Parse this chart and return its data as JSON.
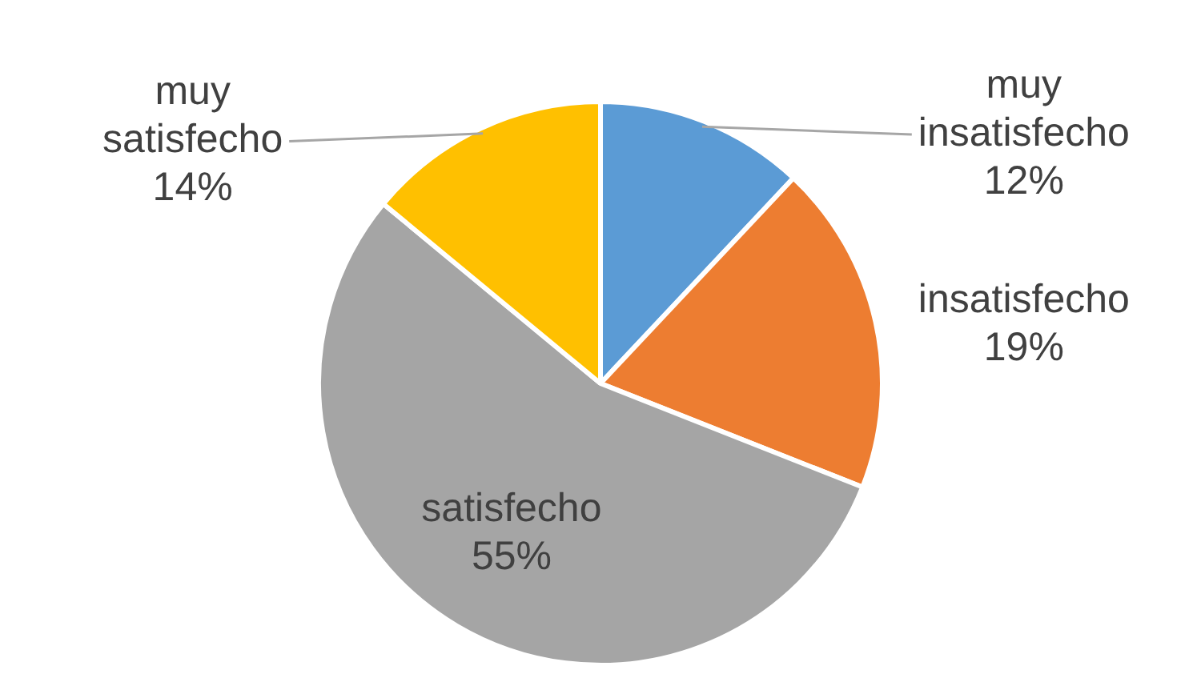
{
  "chart_data": {
    "type": "pie",
    "categories": [
      "muy insatisfecho",
      "insatisfecho",
      "satisfecho",
      "muy satisfecho"
    ],
    "values": [
      12,
      19,
      55,
      14
    ],
    "colors": [
      "#5b9bd5",
      "#ed7d31",
      "#a5a5a5",
      "#ffc000"
    ],
    "value_labels": [
      "12%",
      "19%",
      "55%",
      "14%"
    ],
    "legend": false
  }
}
